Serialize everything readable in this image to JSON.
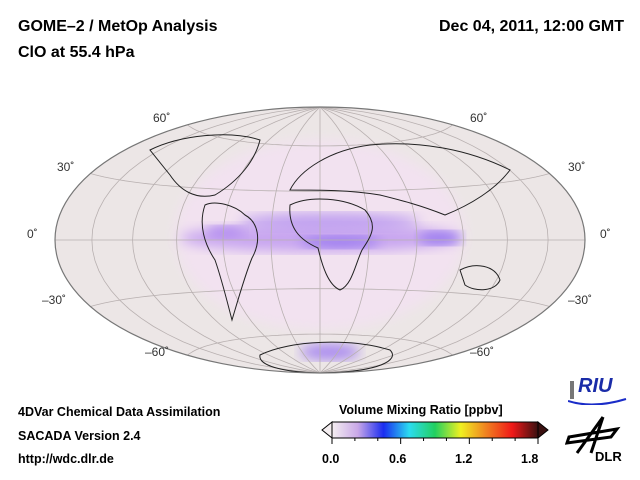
{
  "header": {
    "title_line1": "GOME–2 / MetOp Analysis",
    "title_line2": "ClO at 55.4 hPa",
    "datetime": "Dec 04, 2011, 12:00 GMT"
  },
  "map": {
    "projection": "Hammer-Aitoff",
    "lat_labels": [
      "60˚",
      "30˚",
      "0˚",
      "–30˚",
      "–60˚"
    ],
    "ocean_color": "#ece6e6",
    "enhanced_color": "#b78ef0"
  },
  "footer": {
    "line1": "4DVar Chemical Data Assimilation",
    "line2": "SACADA Version 2.4",
    "line3": "http://wdc.dlr.de"
  },
  "colorbar": {
    "title": "Volume Mixing Ratio [ppbv]",
    "ticks": [
      "0.0",
      "0.6",
      "1.2",
      "1.8"
    ],
    "range": [
      0.0,
      1.8
    ],
    "colors": [
      "#f4eef0",
      "#c9a8e8",
      "#1a2cf0",
      "#2bdcf0",
      "#22d060",
      "#f0f020",
      "#f08020",
      "#f01818",
      "#3a1010"
    ]
  },
  "logos": {
    "riu": "RIU",
    "dlr": "DLR"
  }
}
